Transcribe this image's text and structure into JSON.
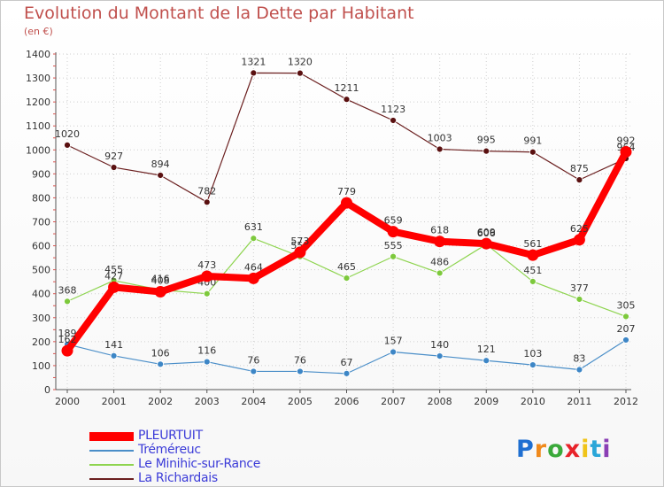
{
  "chart_data": {
    "type": "line",
    "title": "Evolution du Montant de la Dette par Habitant",
    "subtitle": "(en €)",
    "categories": [
      "2000",
      "2001",
      "2002",
      "2003",
      "2004",
      "2005",
      "2006",
      "2007",
      "2008",
      "2009",
      "2010",
      "2011",
      "2012"
    ],
    "ylim": [
      0,
      1400
    ],
    "yticks": [
      0,
      100,
      200,
      300,
      400,
      500,
      600,
      700,
      800,
      900,
      1000,
      1100,
      1200,
      1300,
      1400
    ],
    "grid": true,
    "legend_position": "bottom-left",
    "series": [
      {
        "name": "La Richardais",
        "color": "#6b1f1f",
        "values": [
          1020,
          927,
          894,
          782,
          1321,
          1320,
          1211,
          1123,
          1003,
          995,
          991,
          875,
          964
        ],
        "labels": [
          "1020",
          "927",
          "894",
          "782",
          "1321",
          "1320",
          "1211",
          "1123",
          "1003",
          "995",
          "991",
          "875",
          "964"
        ]
      },
      {
        "name": "Le Minihic-sur-Rance",
        "color": "#8ed44f",
        "values": [
          368,
          455,
          416,
          400,
          631,
          555,
          465,
          555,
          486,
          606,
          451,
          377,
          305
        ],
        "labels": [
          "368",
          "455",
          "416",
          "400",
          "631",
          "555",
          "465",
          "555",
          "486",
          "606",
          "451",
          "377",
          "305"
        ]
      },
      {
        "name": "Tréméreuc",
        "color": "#4a8ec8",
        "values": [
          189,
          141,
          106,
          116,
          76,
          76,
          67,
          157,
          140,
          121,
          103,
          83,
          207
        ],
        "labels": [
          "189",
          "141",
          "106",
          "116",
          "76",
          "76",
          "67",
          "157",
          "140",
          "121",
          "103",
          "83",
          "207"
        ]
      },
      {
        "name": "PLEURTUIT",
        "color": "#ff0000",
        "values": [
          162,
          427,
          408,
          473,
          464,
          573,
          779,
          659,
          618,
          609,
          561,
          625,
          992
        ],
        "labels": [
          "162",
          "427",
          "408",
          "473",
          "464",
          "573",
          "779",
          "659",
          "618",
          "609",
          "561",
          "625",
          "992"
        ]
      }
    ],
    "legend_order": [
      "PLEURTUIT",
      "Tréméreuc",
      "Le Minihic-sur-Rance",
      "La Richardais"
    ]
  },
  "logo": {
    "letters": [
      "P",
      "r",
      "o",
      "x",
      "i",
      "t",
      "i"
    ],
    "colors": [
      "#1f6fd1",
      "#f08a1c",
      "#3aa93a",
      "#e8232a",
      "#f0c419",
      "#2aa6d8",
      "#8a3fb5"
    ]
  }
}
